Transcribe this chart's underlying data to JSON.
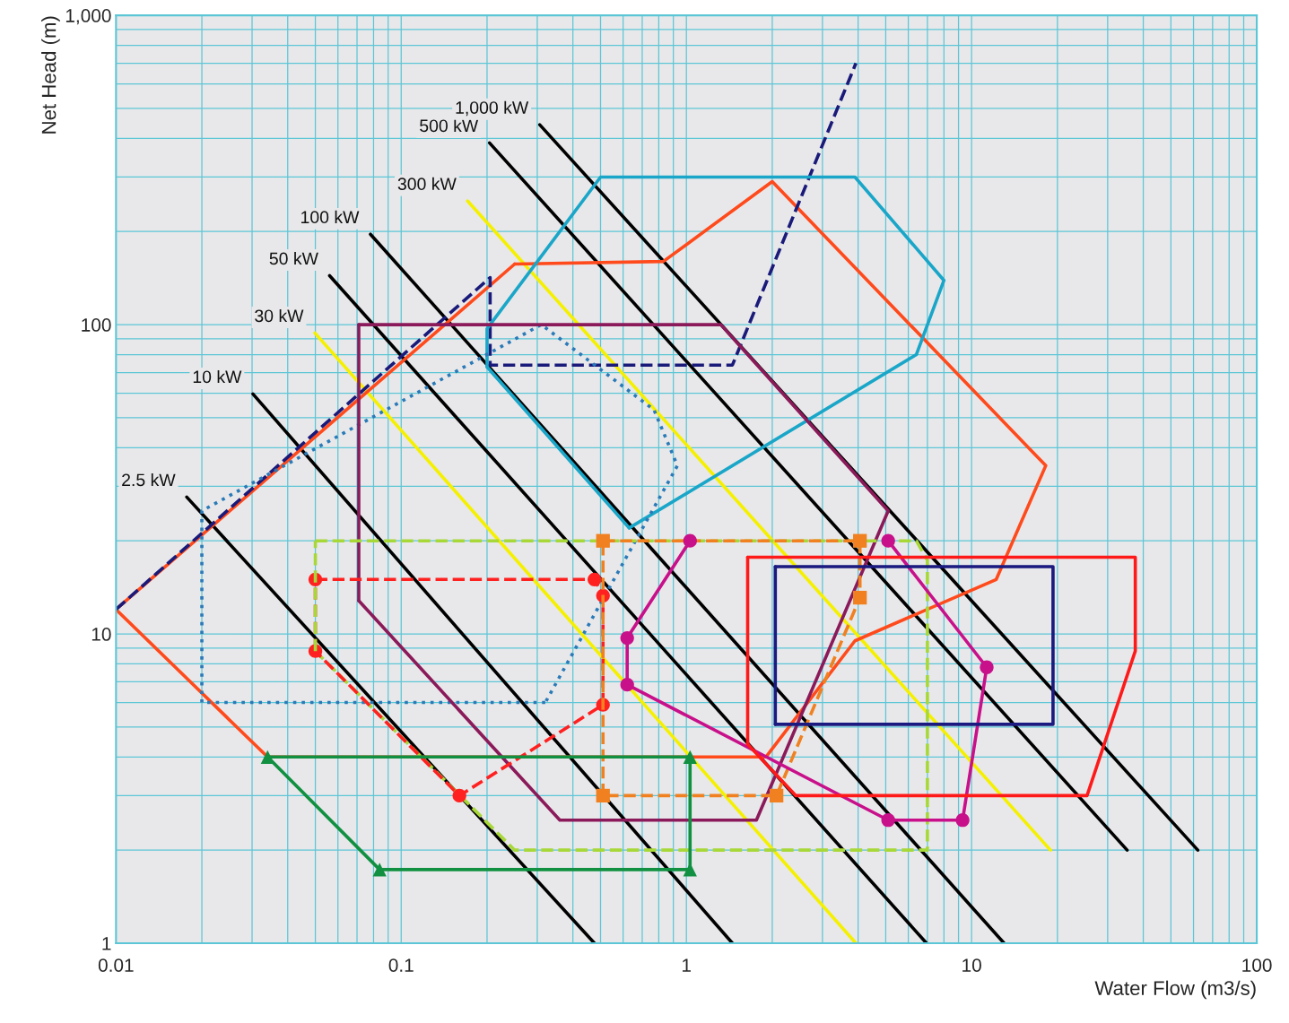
{
  "chart_data": {
    "type": "line",
    "xlabel": "Water Flow (m3/s)",
    "ylabel": "Net Head (m)",
    "log": "xy",
    "grid": true,
    "xlim": [
      0.01,
      100
    ],
    "ylim": [
      1,
      1000
    ],
    "xticks": [
      0.01,
      0.1,
      1,
      10,
      100
    ],
    "yticks": [
      1,
      10,
      100,
      {
        "value": 1000,
        "label": "1,000"
      }
    ],
    "series": [
      {
        "name": "2.5 kW",
        "color": "#000000",
        "x": [
          0.0177,
          0.476
        ],
        "values": [
          27.7,
          1
        ]
      },
      {
        "name": "10 kW",
        "color": "#000000",
        "x": [
          0.0302,
          1.45
        ],
        "values": [
          59.7,
          1
        ]
      },
      {
        "name": "30 kW",
        "color": "#f5f000",
        "x": [
          0.0498,
          3.93
        ],
        "values": [
          94,
          1
        ]
      },
      {
        "name": "50 kW",
        "color": "#000000",
        "x": [
          0.0561,
          6.95
        ],
        "values": [
          144,
          1
        ]
      },
      {
        "name": "100 kW",
        "color": "#000000",
        "x": [
          0.078,
          13.0
        ],
        "values": [
          196,
          1
        ]
      },
      {
        "name": "300 kW",
        "color": "#f5f000",
        "x": [
          0.171,
          18.9
        ],
        "values": [
          251,
          2
        ]
      },
      {
        "name": "500 kW",
        "color": "#000000",
        "x": [
          0.204,
          35.1
        ],
        "values": [
          387,
          2
        ]
      },
      {
        "name": "1,000 kW",
        "color": "#000000",
        "x": [
          0.306,
          62.1
        ],
        "values": [
          443,
          2
        ]
      },
      {
        "color": "#ff4a1c",
        "x": [
          0.01,
          0.034,
          1.9,
          3.9,
          12.2,
          18.2,
          2.0,
          0.83,
          0.25
        ],
        "values": [
          12,
          4,
          4,
          9.5,
          15,
          35,
          290,
          160,
          157
        ]
      },
      {
        "color": "#ff4a1c",
        "x": [
          0.25,
          0.01
        ],
        "values": [
          157,
          12
        ]
      },
      {
        "color": "#1a1a7a",
        "line_style": "dashed",
        "x": [
          0.01,
          0.205,
          0.205,
          1.45,
          3.93
        ],
        "values": [
          12,
          142,
          74,
          74,
          700
        ]
      },
      {
        "color": "#1aa6c8",
        "x": [
          0.2,
          0.2,
          0.5,
          3.9,
          8,
          6.4,
          0.63
        ],
        "values": [
          73,
          97,
          300,
          300,
          139,
          80,
          22
        ]
      },
      {
        "color": "#1aa6c8",
        "x": [
          0.63,
          0.2
        ],
        "values": [
          22,
          73
        ]
      },
      {
        "color": "#2a7ab8",
        "line_style": "dotted",
        "x": [
          0.02,
          0.02,
          0.31,
          0.77,
          0.93,
          0.32
        ],
        "values": [
          6,
          25,
          100,
          53,
          35,
          6
        ]
      },
      {
        "color": "#2a7ab8",
        "line_style": "dotted",
        "x": [
          0.32,
          0.02
        ],
        "values": [
          6,
          6
        ]
      },
      {
        "color": "#8b1a5a",
        "x": [
          0.071,
          1.32,
          5.1,
          1.76,
          0.36,
          0.071
        ],
        "values": [
          100,
          100,
          25,
          2.5,
          2.5,
          12.8
        ]
      },
      {
        "color": "#8b1a5a",
        "x": [
          0.071,
          0.071
        ],
        "values": [
          12.8,
          100
        ]
      },
      {
        "color": "#a8d838",
        "line_style": "dashed",
        "x": [
          0.05,
          6.4,
          7,
          7,
          0.25,
          0.05
        ],
        "values": [
          20,
          20,
          17.3,
          2,
          2,
          8.8
        ]
      },
      {
        "color": "#ff2020",
        "line_style": "dashed",
        "marker": "circle",
        "x": [
          0.05,
          0.476,
          0.51,
          0.51,
          0.16,
          0.05
        ],
        "values": [
          15,
          15,
          13.3,
          5.9,
          3,
          8.8
        ]
      },
      {
        "color": "#ff2020",
        "line_style": "dashed",
        "x": [
          0.05,
          0.05
        ],
        "values": [
          8.8,
          15
        ]
      },
      {
        "color": "#a8d838",
        "line_style": "dashed",
        "x": [
          0.05,
          0.05
        ],
        "values": [
          8.8,
          20
        ]
      },
      {
        "color": "#f08020",
        "line_style": "dashed",
        "marker": "square",
        "x": [
          0.51,
          4.06,
          4.06,
          2.07,
          0.51
        ],
        "values": [
          20,
          20,
          13.1,
          3,
          3
        ]
      },
      {
        "color": "#f08020",
        "line_style": "dashed",
        "x": [
          0.51,
          0.51
        ],
        "values": [
          3,
          20
        ]
      },
      {
        "color": "#c8108a",
        "marker": "circle",
        "x": [
          1.03,
          0.62,
          0.62,
          5.1,
          9.3,
          11.3,
          5.1
        ],
        "values": [
          20,
          9.7,
          6.85,
          2.5,
          2.5,
          7.8,
          20
        ]
      },
      {
        "color": "#109040",
        "marker": "triangle",
        "x": [
          0.034,
          1.03,
          1.03,
          0.084
        ],
        "values": [
          4,
          4,
          1.73,
          1.73
        ]
      },
      {
        "color": "#109040",
        "x": [
          0.084,
          0.034
        ],
        "values": [
          1.73,
          4
        ]
      },
      {
        "color": "#ff1a1a",
        "x": [
          1.64,
          37.5,
          37.5,
          25.4,
          2.42,
          1.64
        ],
        "values": [
          17.7,
          17.7,
          8.8,
          3,
          3,
          4.4
        ]
      },
      {
        "color": "#ff1a1a",
        "x": [
          1.64,
          1.64
        ],
        "values": [
          4.4,
          17.7
        ]
      },
      {
        "color": "#1a1a80",
        "x": [
          2.05,
          19.3,
          19.3,
          2.05
        ],
        "values": [
          16.5,
          16.5,
          5.1,
          5.1
        ]
      },
      {
        "color": "#1a1a80",
        "x": [
          2.05,
          2.05
        ],
        "values": [
          5.1,
          16.5
        ]
      }
    ]
  }
}
